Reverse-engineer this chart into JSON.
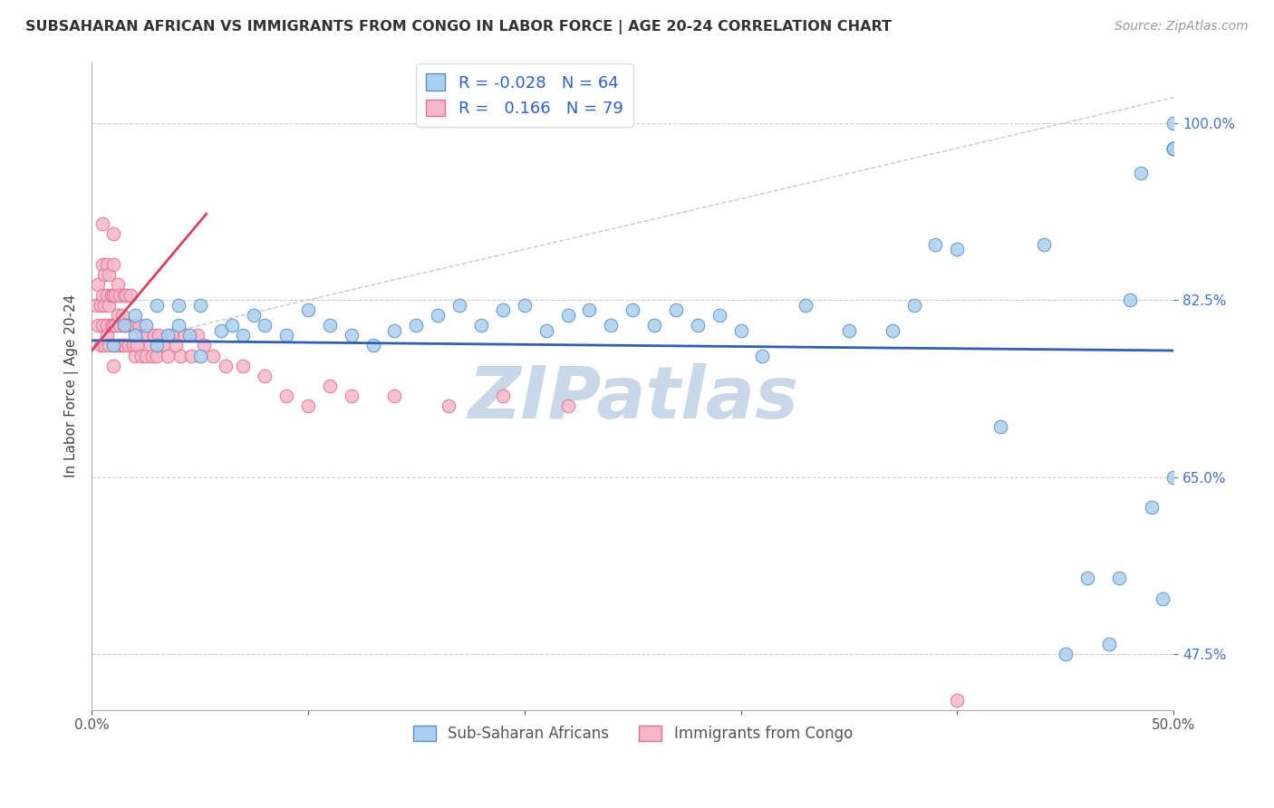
{
  "title": "SUBSAHARAN AFRICAN VS IMMIGRANTS FROM CONGO IN LABOR FORCE | AGE 20-24 CORRELATION CHART",
  "source": "Source: ZipAtlas.com",
  "ylabel": "In Labor Force | Age 20-24",
  "xlim": [
    0.0,
    0.5
  ],
  "ylim": [
    0.42,
    1.06
  ],
  "xtick_positions": [
    0.0,
    0.1,
    0.2,
    0.3,
    0.4,
    0.5
  ],
  "xtick_labels_show": [
    "0.0%",
    "",
    "",
    "",
    "",
    "50.0%"
  ],
  "ytick_positions": [
    0.475,
    0.65,
    0.825,
    1.0
  ],
  "ytick_labels": [
    "47.5%",
    "65.0%",
    "82.5%",
    "100.0%"
  ],
  "blue_color": "#aacfef",
  "pink_color": "#f5b8cb",
  "blue_edge": "#5a8fc0",
  "pink_edge": "#e07090",
  "blue_line_color": "#3060b0",
  "pink_line_color": "#d84060",
  "diag_color": "#c8c8c8",
  "watermark_text": "ZIPatlas",
  "watermark_color": "#c8d8e8",
  "legend_R_blue": "-0.028",
  "legend_N_blue": "64",
  "legend_R_pink": "0.166",
  "legend_N_pink": "79",
  "ytick_color": "#4472c4",
  "blue_x": [
    0.01,
    0.015,
    0.02,
    0.02,
    0.025,
    0.03,
    0.03,
    0.035,
    0.04,
    0.04,
    0.045,
    0.05,
    0.05,
    0.06,
    0.065,
    0.07,
    0.075,
    0.08,
    0.09,
    0.1,
    0.11,
    0.12,
    0.13,
    0.14,
    0.15,
    0.16,
    0.17,
    0.18,
    0.19,
    0.2,
    0.21,
    0.22,
    0.23,
    0.24,
    0.25,
    0.26,
    0.27,
    0.28,
    0.29,
    0.3,
    0.31,
    0.33,
    0.35,
    0.37,
    0.38,
    0.39,
    0.4,
    0.42,
    0.44,
    0.45,
    0.46,
    0.47,
    0.475,
    0.48,
    0.485,
    0.49,
    0.495,
    0.5,
    0.5,
    0.5,
    0.5,
    0.5,
    0.5,
    0.5
  ],
  "blue_y": [
    0.78,
    0.8,
    0.79,
    0.81,
    0.8,
    0.78,
    0.82,
    0.79,
    0.8,
    0.82,
    0.79,
    0.77,
    0.82,
    0.795,
    0.8,
    0.79,
    0.81,
    0.8,
    0.79,
    0.815,
    0.8,
    0.79,
    0.78,
    0.795,
    0.8,
    0.81,
    0.82,
    0.8,
    0.815,
    0.82,
    0.795,
    0.81,
    0.815,
    0.8,
    0.815,
    0.8,
    0.815,
    0.8,
    0.81,
    0.795,
    0.77,
    0.82,
    0.795,
    0.795,
    0.82,
    0.88,
    0.875,
    0.7,
    0.88,
    0.475,
    0.55,
    0.485,
    0.55,
    0.825,
    0.95,
    0.62,
    0.53,
    1.0,
    0.975,
    0.975,
    0.975,
    0.65,
    0.975,
    0.975
  ],
  "pink_x": [
    0.002,
    0.003,
    0.003,
    0.004,
    0.004,
    0.005,
    0.005,
    0.005,
    0.005,
    0.006,
    0.006,
    0.006,
    0.007,
    0.007,
    0.007,
    0.007,
    0.008,
    0.008,
    0.008,
    0.009,
    0.009,
    0.01,
    0.01,
    0.01,
    0.01,
    0.01,
    0.011,
    0.011,
    0.012,
    0.012,
    0.012,
    0.013,
    0.013,
    0.014,
    0.014,
    0.015,
    0.015,
    0.015,
    0.016,
    0.016,
    0.017,
    0.018,
    0.018,
    0.019,
    0.02,
    0.02,
    0.021,
    0.022,
    0.023,
    0.024,
    0.025,
    0.026,
    0.027,
    0.028,
    0.029,
    0.03,
    0.031,
    0.033,
    0.035,
    0.037,
    0.039,
    0.041,
    0.043,
    0.046,
    0.049,
    0.052,
    0.056,
    0.062,
    0.07,
    0.08,
    0.09,
    0.1,
    0.11,
    0.12,
    0.14,
    0.165,
    0.19,
    0.22,
    0.4
  ],
  "pink_y": [
    0.82,
    0.84,
    0.8,
    0.82,
    0.78,
    0.8,
    0.83,
    0.86,
    0.9,
    0.82,
    0.85,
    0.78,
    0.8,
    0.83,
    0.86,
    0.79,
    0.82,
    0.85,
    0.78,
    0.8,
    0.83,
    0.8,
    0.83,
    0.86,
    0.89,
    0.76,
    0.8,
    0.83,
    0.78,
    0.81,
    0.84,
    0.8,
    0.83,
    0.78,
    0.81,
    0.8,
    0.83,
    0.78,
    0.8,
    0.83,
    0.78,
    0.8,
    0.83,
    0.78,
    0.8,
    0.77,
    0.78,
    0.8,
    0.77,
    0.79,
    0.77,
    0.79,
    0.78,
    0.77,
    0.79,
    0.77,
    0.79,
    0.78,
    0.77,
    0.79,
    0.78,
    0.77,
    0.79,
    0.77,
    0.79,
    0.78,
    0.77,
    0.76,
    0.76,
    0.75,
    0.73,
    0.72,
    0.74,
    0.73,
    0.73,
    0.72,
    0.73,
    0.72,
    0.43
  ],
  "pink_line_x0": 0.0,
  "pink_line_x1": 0.053,
  "pink_line_y0": 0.775,
  "pink_line_y1": 0.91,
  "blue_line_y0": 0.785,
  "blue_line_y1": 0.775
}
